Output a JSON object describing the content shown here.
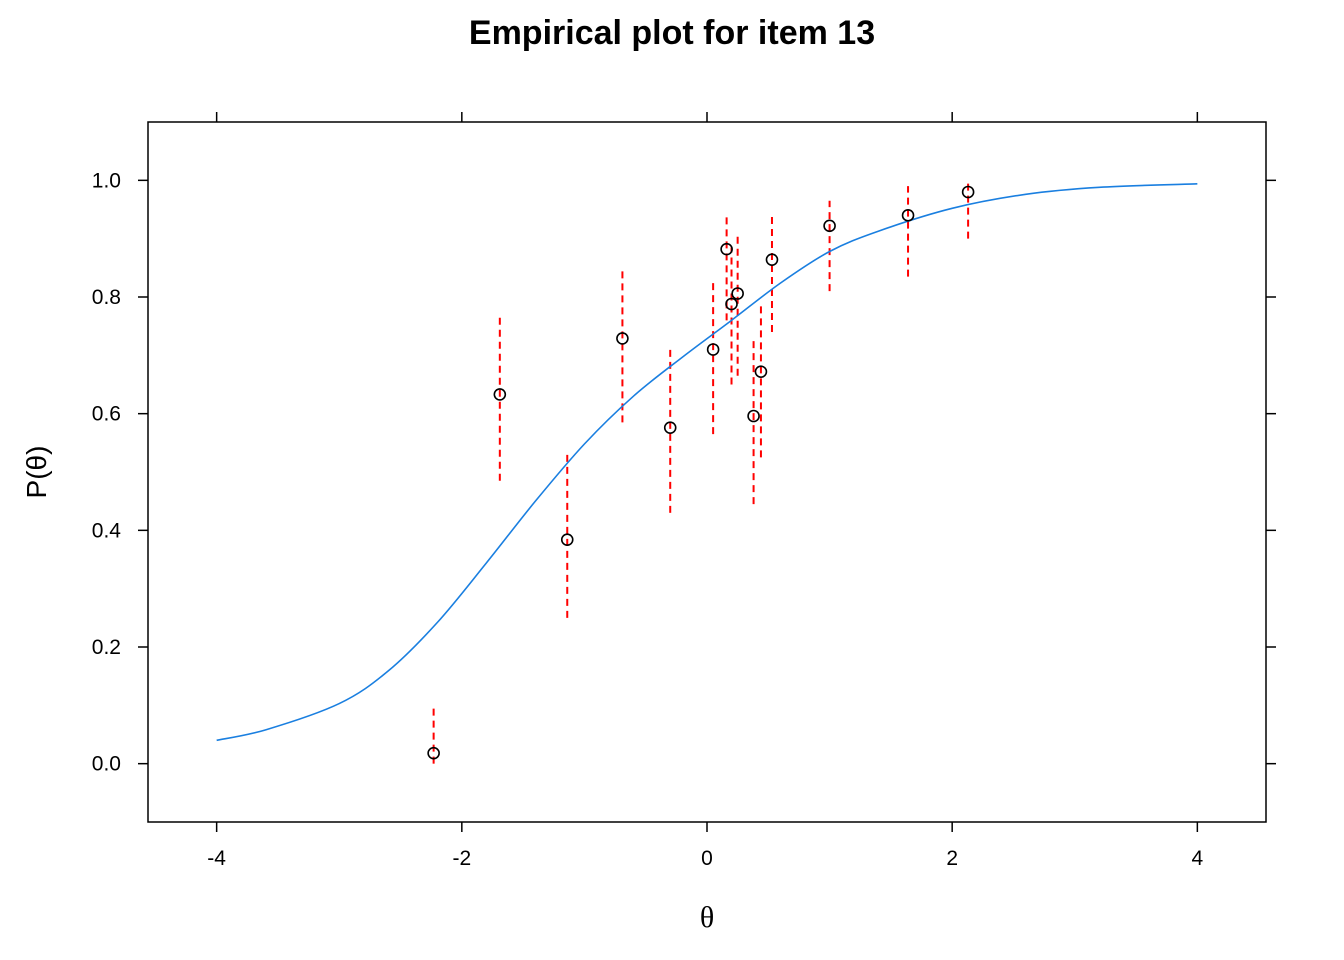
{
  "chart_data": {
    "type": "scatter",
    "title": "Empirical plot for item 13",
    "xlabel": "θ",
    "ylabel": "P(θ)",
    "xlim": [
      -4.56,
      4.56
    ],
    "ylim": [
      -0.1,
      1.1
    ],
    "x_ticks": [
      -4,
      -2,
      0,
      2,
      4
    ],
    "x_tick_labels": [
      "-4",
      "-2",
      "0",
      "2",
      "4"
    ],
    "y_ticks": [
      0.0,
      0.2,
      0.4,
      0.6,
      0.8,
      1.0
    ],
    "y_tick_labels": [
      "0.0",
      "0.2",
      "0.4",
      "0.6",
      "0.8",
      "1.0"
    ],
    "colors": {
      "curve": "#1a7fe0",
      "interval": "#ff0000",
      "point": "#000000"
    },
    "curve": [
      {
        "x": -4.0,
        "y": 0.04
      },
      {
        "x": -3.6,
        "y": 0.058
      },
      {
        "x": -3.0,
        "y": 0.103
      },
      {
        "x": -2.6,
        "y": 0.159
      },
      {
        "x": -2.2,
        "y": 0.242
      },
      {
        "x": -1.8,
        "y": 0.344
      },
      {
        "x": -1.4,
        "y": 0.45
      },
      {
        "x": -1.0,
        "y": 0.548
      },
      {
        "x": -0.6,
        "y": 0.63
      },
      {
        "x": -0.2,
        "y": 0.697
      },
      {
        "x": 0.2,
        "y": 0.76
      },
      {
        "x": 0.6,
        "y": 0.824
      },
      {
        "x": 1.0,
        "y": 0.878
      },
      {
        "x": 1.4,
        "y": 0.913
      },
      {
        "x": 2.0,
        "y": 0.952
      },
      {
        "x": 2.6,
        "y": 0.976
      },
      {
        "x": 3.2,
        "y": 0.988
      },
      {
        "x": 4.0,
        "y": 0.994
      }
    ],
    "points": [
      {
        "x": -2.23,
        "y": 0.018,
        "lo": 0.0,
        "hi": 0.1
      },
      {
        "x": -1.69,
        "y": 0.633,
        "lo": 0.485,
        "hi": 0.765
      },
      {
        "x": -1.14,
        "y": 0.384,
        "lo": 0.25,
        "hi": 0.53
      },
      {
        "x": -0.69,
        "y": 0.729,
        "lo": 0.585,
        "hi": 0.85
      },
      {
        "x": -0.3,
        "y": 0.576,
        "lo": 0.43,
        "hi": 0.715
      },
      {
        "x": 0.05,
        "y": 0.71,
        "lo": 0.565,
        "hi": 0.83
      },
      {
        "x": 0.16,
        "y": 0.882,
        "lo": 0.76,
        "hi": 0.945
      },
      {
        "x": 0.2,
        "y": 0.788,
        "lo": 0.65,
        "hi": 0.885
      },
      {
        "x": 0.25,
        "y": 0.806,
        "lo": 0.665,
        "hi": 0.905
      },
      {
        "x": 0.38,
        "y": 0.596,
        "lo": 0.445,
        "hi": 0.73
      },
      {
        "x": 0.44,
        "y": 0.672,
        "lo": 0.525,
        "hi": 0.79
      },
      {
        "x": 0.53,
        "y": 0.864,
        "lo": 0.74,
        "hi": 0.945
      },
      {
        "x": 1.0,
        "y": 0.922,
        "lo": 0.81,
        "hi": 0.965
      },
      {
        "x": 1.64,
        "y": 0.94,
        "lo": 0.835,
        "hi": 0.99
      },
      {
        "x": 2.13,
        "y": 0.98,
        "lo": 0.9,
        "hi": 1.0
      }
    ]
  }
}
